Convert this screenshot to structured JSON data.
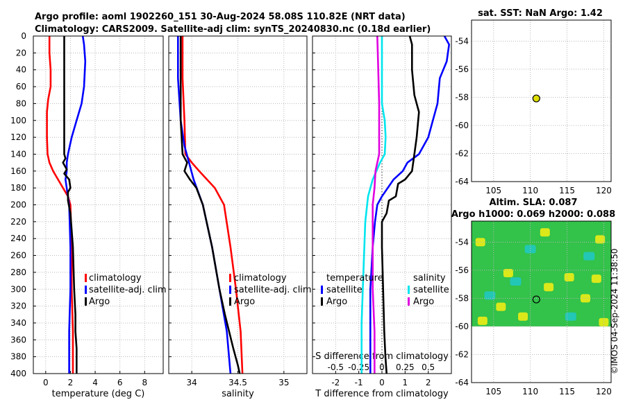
{
  "titles": {
    "line1": "Argo profile: aoml 1902260_151 30-Aug-2024 58.08S 110.82E (NRT data)",
    "line2": "Climatology: CARS2009. Satellite-adj clim: synTS_20240830.nc (0.18d earlier)",
    "sst": "sat. SST: NaN Argo: 1.42",
    "sla1": "Altim. SLA: 0.087",
    "sla2": "Argo h1000: 0.069 h2000: 0.088"
  },
  "watermark": "©IMOS 04-Sep-2024 11:38:50",
  "colors": {
    "climatology": "#ff0000",
    "satellite": "#0000ff",
    "argo": "#000000",
    "s_satellite": "#00e5ee",
    "s_argo": "#e000e0",
    "marker": "#dddd00",
    "grid": "#b8b8b8"
  },
  "chart_data": [
    {
      "id": "temperature",
      "type": "line",
      "xlabel": "temperature (deg C)",
      "xlim": [
        -1,
        9.5
      ],
      "ylim": [
        0,
        400
      ],
      "xticks": [
        0,
        2,
        4,
        6,
        8
      ],
      "xtick_labels": [
        "0",
        "2",
        "4",
        "6",
        "8"
      ],
      "yticks": [
        0,
        20,
        40,
        60,
        80,
        100,
        120,
        140,
        160,
        180,
        200,
        220,
        240,
        260,
        280,
        300,
        320,
        340,
        360,
        380,
        400
      ],
      "ytick_labels": [
        "0",
        "20",
        "40",
        "60",
        "80",
        "100",
        "120",
        "140",
        "160",
        "180",
        "200",
        "220",
        "240",
        "260",
        "280",
        "300",
        "320",
        "340",
        "360",
        "380",
        "400"
      ],
      "legend": [
        "climatology",
        "satellite-adj. clim",
        "Argo"
      ],
      "series": [
        {
          "name": "climatology",
          "color": "#ff0000",
          "x": [
            0.3,
            0.3,
            0.4,
            0.4,
            0.2,
            0.1,
            0.1,
            0.15,
            0.3,
            0.6,
            1.0,
            1.4,
            1.8,
            2.0,
            2.1,
            2.1,
            2.2,
            2.2
          ],
          "y": [
            0,
            20,
            40,
            60,
            75,
            90,
            120,
            140,
            150,
            160,
            170,
            180,
            190,
            200,
            250,
            300,
            350,
            400
          ]
        },
        {
          "name": "satellite-adj. clim",
          "color": "#0000ff",
          "x": [
            3.0,
            3.1,
            3.2,
            3.1,
            2.9,
            2.5,
            2.1,
            1.8,
            1.7,
            1.7,
            1.6,
            1.9,
            2.0,
            2.0,
            1.9,
            1.9
          ],
          "y": [
            0,
            10,
            30,
            60,
            80,
            100,
            120,
            140,
            150,
            160,
            170,
            200,
            250,
            300,
            350,
            400
          ]
        },
        {
          "name": "Argo",
          "color": "#000000",
          "x": [
            1.5,
            1.5,
            1.5,
            1.5,
            1.6,
            1.4,
            1.7,
            1.5,
            1.9,
            2.0,
            1.8,
            1.8,
            2.0,
            2.2,
            2.3,
            2.4,
            2.4,
            2.5,
            2.5
          ],
          "y": [
            0,
            50,
            100,
            140,
            145,
            150,
            158,
            163,
            170,
            180,
            185,
            195,
            210,
            250,
            300,
            330,
            350,
            370,
            400
          ]
        }
      ]
    },
    {
      "id": "salinity",
      "type": "line",
      "xlabel": "salinity",
      "xlim": [
        33.75,
        35.25
      ],
      "ylim": [
        0,
        400
      ],
      "xticks": [
        34,
        34.5,
        35
      ],
      "xtick_labels": [
        "34",
        "34.5",
        "35"
      ],
      "yticks": [
        0,
        20,
        40,
        60,
        80,
        100,
        120,
        140,
        160,
        180,
        200,
        220,
        240,
        260,
        280,
        300,
        320,
        340,
        360,
        380,
        400
      ],
      "legend": [
        "climatology",
        "satellite-adj. clim",
        "Argo"
      ],
      "series": [
        {
          "name": "climatology",
          "color": "#ff0000",
          "x": [
            33.9,
            33.9,
            33.92,
            33.93,
            34.0,
            34.08,
            34.25,
            34.35,
            34.42,
            34.48,
            34.53,
            34.55
          ],
          "y": [
            0,
            50,
            100,
            140,
            150,
            160,
            180,
            200,
            250,
            300,
            350,
            400
          ]
        },
        {
          "name": "satellite-adj. clim",
          "color": "#0000ff",
          "x": [
            33.85,
            33.85,
            33.88,
            33.92,
            33.97,
            34.02,
            34.12,
            34.22,
            34.3,
            34.38,
            34.42
          ],
          "y": [
            0,
            50,
            100,
            130,
            150,
            170,
            200,
            250,
            300,
            350,
            400
          ]
        },
        {
          "name": "Argo",
          "color": "#000000",
          "x": [
            33.88,
            33.88,
            33.88,
            33.9,
            33.95,
            33.92,
            33.98,
            34.05,
            34.12,
            34.22,
            34.3,
            34.36,
            34.45,
            34.5,
            34.52
          ],
          "y": [
            0,
            50,
            100,
            140,
            150,
            160,
            170,
            180,
            200,
            250,
            300,
            330,
            370,
            390,
            400
          ]
        }
      ]
    },
    {
      "id": "difference",
      "type": "line",
      "xlabel": "T difference from climatology",
      "top_xlabel": "S difference from climatology",
      "xlim": [
        -3,
        3
      ],
      "ylim": [
        0,
        400
      ],
      "xticks": [
        -2,
        -1,
        0,
        1,
        2
      ],
      "xtick_labels": [
        "-2",
        "-1",
        "0",
        "1",
        "2"
      ],
      "top_ticks": [
        -0.5,
        -0.25,
        0,
        0.25,
        0.5
      ],
      "top_tick_labels": [
        "-0.5",
        "-0.25",
        "0",
        "0.25",
        "0.5"
      ],
      "top_xlim": [
        -0.75,
        0.75
      ],
      "yticks": [
        0,
        20,
        40,
        60,
        80,
        100,
        120,
        140,
        160,
        180,
        200,
        220,
        240,
        260,
        280,
        300,
        320,
        340,
        360,
        380,
        400
      ],
      "legend_temperature": {
        "title": "temperature",
        "items": [
          "satellite",
          "Argo"
        ]
      },
      "legend_salinity": {
        "title": "salinity",
        "items": [
          "satellite",
          "Argo"
        ]
      },
      "series": [
        {
          "name": "T satellite",
          "color": "#0000ff",
          "x": [
            2.7,
            2.9,
            2.8,
            2.5,
            2.4,
            2.2,
            2.0,
            1.6,
            1.1,
            0.9,
            0.5,
            0.0,
            -0.2,
            -0.3,
            -0.4,
            -0.5,
            -0.5
          ],
          "y": [
            0,
            10,
            30,
            50,
            80,
            100,
            120,
            140,
            150,
            160,
            170,
            190,
            200,
            220,
            250,
            300,
            400
          ]
        },
        {
          "name": "T Argo",
          "color": "#000000",
          "x": [
            1.2,
            1.3,
            1.3,
            1.4,
            1.6,
            1.5,
            1.4,
            1.3,
            1.0,
            0.7,
            0.6,
            0.3,
            0.2,
            0.0,
            0.0,
            0.05,
            0.1,
            0.15,
            0.2
          ],
          "y": [
            0,
            10,
            40,
            70,
            90,
            120,
            140,
            160,
            170,
            175,
            190,
            195,
            210,
            220,
            250,
            300,
            350,
            380,
            400
          ]
        },
        {
          "name": "S satellite",
          "color": "#00e5ee",
          "x": [
            0.0,
            0.0,
            0.0,
            0.03,
            0.04,
            0.03,
            -0.02,
            -0.1,
            -0.15,
            -0.18,
            -0.2,
            -0.22,
            -0.22
          ],
          "y": [
            0,
            40,
            80,
            100,
            120,
            140,
            150,
            170,
            190,
            220,
            280,
            340,
            400
          ]
        },
        {
          "name": "S Argo",
          "color": "#e000e0",
          "x": [
            -0.05,
            -0.04,
            -0.03,
            -0.03,
            -0.03,
            -0.05,
            -0.07,
            -0.08,
            -0.1,
            -0.1,
            -0.1,
            -0.08,
            -0.08
          ],
          "y": [
            0,
            40,
            80,
            120,
            140,
            150,
            160,
            180,
            200,
            250,
            300,
            350,
            400
          ]
        }
      ]
    },
    {
      "id": "sst_map",
      "type": "scatter",
      "title": "sat. SST: NaN Argo: 1.42",
      "xlim": [
        102,
        121
      ],
      "ylim": [
        -64,
        -52.5
      ],
      "xticks": [
        105,
        110,
        115,
        120
      ],
      "xtick_labels": [
        "105",
        "110",
        "115",
        "120"
      ],
      "yticks": [
        -54,
        -56,
        -58,
        -60,
        -62,
        -64
      ],
      "ytick_labels": [
        "-54",
        "-56",
        "-58",
        "-60",
        "-62",
        "-64"
      ],
      "points": [
        {
          "lon": 110.82,
          "lat": -58.08
        }
      ]
    },
    {
      "id": "sla_map",
      "type": "heatmap",
      "title": "Altim. SLA: 0.087",
      "subtitle": "Argo h1000: 0.069 h2000: 0.088",
      "xlim": [
        102,
        121
      ],
      "ylim": [
        -64,
        -52.5
      ],
      "data_lat_range": [
        -60,
        -52.5
      ],
      "xticks": [
        105,
        110,
        115,
        120
      ],
      "xtick_labels": [
        "105",
        "110",
        "115",
        "120"
      ],
      "yticks": [
        -54,
        -56,
        -58,
        -60,
        -62,
        -64
      ],
      "ytick_labels": [
        "-54",
        "-56",
        "-58",
        "-60",
        "-62",
        "-64"
      ],
      "points": [
        {
          "lon": 110.82,
          "lat": -58.08
        }
      ],
      "hot_spots": [
        {
          "lon": 103.2,
          "lat": -54.0
        },
        {
          "lon": 112.0,
          "lat": -53.3
        },
        {
          "lon": 119.5,
          "lat": -53.8
        },
        {
          "lon": 107.0,
          "lat": -56.2
        },
        {
          "lon": 115.3,
          "lat": -56.5
        },
        {
          "lon": 119.0,
          "lat": -56.6
        },
        {
          "lon": 112.5,
          "lat": -57.2
        },
        {
          "lon": 106.0,
          "lat": -58.6
        },
        {
          "lon": 117.5,
          "lat": -58.0
        },
        {
          "lon": 103.5,
          "lat": -59.6
        },
        {
          "lon": 109.0,
          "lat": -59.3
        },
        {
          "lon": 120.0,
          "lat": -59.7
        }
      ],
      "cool_spots": [
        {
          "lon": 115.5,
          "lat": -59.3
        },
        {
          "lon": 104.5,
          "lat": -57.8
        },
        {
          "lon": 110.0,
          "lat": -54.5
        },
        {
          "lon": 118.0,
          "lat": -55.0
        },
        {
          "lon": 108.0,
          "lat": -56.8
        }
      ]
    }
  ]
}
